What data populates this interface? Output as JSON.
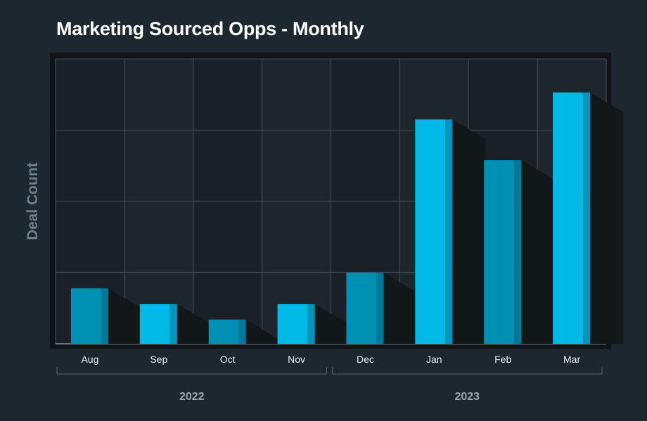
{
  "chart_data": {
    "type": "bar",
    "title": "Marketing Sourced Opps - Monthly",
    "xlabel": "",
    "ylabel": "Deal Count",
    "categories": [
      "Aug",
      "Sep",
      "Oct",
      "Nov",
      "Dec",
      "Jan",
      "Feb",
      "Mar"
    ],
    "values": [
      0.78,
      0.56,
      0.34,
      0.56,
      1.0,
      3.15,
      2.58,
      3.53
    ],
    "ylim": [
      0,
      4
    ],
    "grid": true,
    "legend": "none",
    "category_groups": [
      {
        "label": "2022",
        "categories": [
          "Aug",
          "Sep",
          "Oct",
          "Nov"
        ]
      },
      {
        "label": "2023",
        "categories": [
          "Dec",
          "Jan",
          "Feb",
          "Mar"
        ]
      }
    ],
    "colors": {
      "dark_bar": "#0090b4",
      "light_bar": "#00b9e6",
      "plot_bg": "#1f272e",
      "grid": "#3c4750",
      "shadow": "#121719"
    }
  }
}
